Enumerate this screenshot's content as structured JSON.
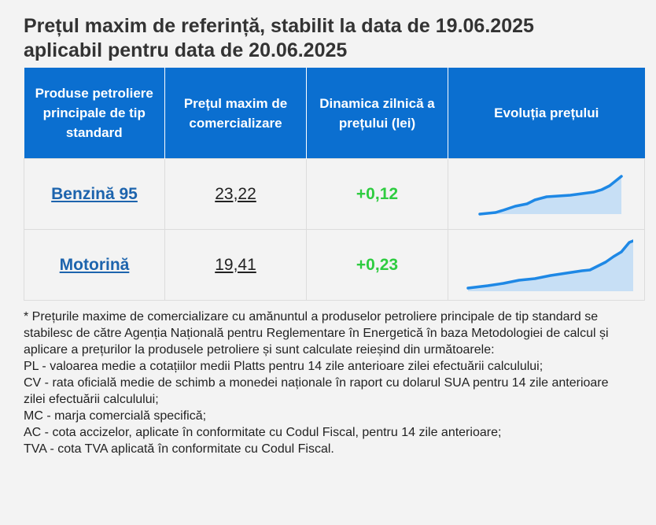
{
  "title_line1": "Prețul maxim de referință, stabilit la data de 19.06.2025",
  "title_line2": "aplicabil pentru data de 20.06.2025",
  "table": {
    "headers": [
      "Produse petroliere principale de tip standard",
      "Prețul maxim de comercializare",
      "Dinamica zilnică a prețului (lei)",
      "Evoluția prețului"
    ],
    "rows": [
      {
        "product": "Benzină 95",
        "price": "23,22",
        "delta": "+0,12"
      },
      {
        "product": "Motorină",
        "price": "19,41",
        "delta": "+0,23"
      }
    ]
  },
  "notes": [
    "* Prețurile maxime de comercializare cu amănuntul a produselor petroliere principale de tip standard se stabilesc de către Agenția Națională pentru Reglementare în Energetică în baza Metodologiei de calcul și aplicare a prețurilor la produsele petroliere și sunt calculate reieșind din următoarele:",
    "PL - valoarea medie a cotațiilor medii Platts pentru 14 zile anterioare zilei efectuării calculului;",
    "CV - rata oficială medie de schimb a monedei naționale în raport cu dolarul SUA pentru 14 zile anterioare zilei efectuării calculului;",
    "MC - marja comercială specifică;",
    "AC - cota accizelor, aplicate în conformitate cu Codul Fiscal, pentru 14 zile anterioare;",
    "TVA - cota TVA aplicată în conformitate cu Codul Fiscal."
  ],
  "colors": {
    "header_bg": "#0b6fd0",
    "link": "#1d64ad",
    "delta": "#2ecc40",
    "spark_line": "#1e88e5"
  }
}
